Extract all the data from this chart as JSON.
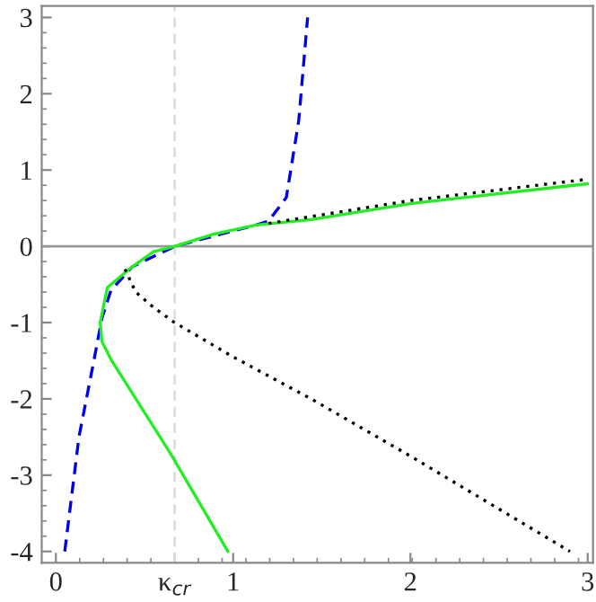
{
  "chart_data": {
    "type": "line",
    "xlim": [
      -0.08,
      3.03
    ],
    "ylim": [
      -4.15,
      3.15
    ],
    "xticks": [
      0,
      {
        "value": 0.67,
        "label": "κ$_{cr}$"
      },
      1,
      2,
      3
    ],
    "yticks": [
      -4,
      -3,
      -2,
      -1,
      0,
      1,
      2,
      3
    ],
    "grid": false,
    "legend": false,
    "marker": "none",
    "ref_lines": [
      {
        "axis": "y",
        "value": 0,
        "color": "#999999",
        "line_style": "solid"
      },
      {
        "axis": "x",
        "value": 0.67,
        "color": "#dddddd",
        "line_style": "dashed"
      }
    ],
    "series": [
      {
        "color": "#0000ee",
        "line_style": "dashed",
        "x": [
          0.05,
          0.13,
          0.21,
          0.26,
          0.31,
          0.43,
          0.55,
          0.67,
          0.89,
          1.13,
          1.2,
          1.3,
          1.37,
          1.42
        ],
        "values": [
          -4,
          -2.5,
          -1.55,
          -0.94,
          -0.58,
          -0.27,
          null,
          0,
          null,
          0.28,
          0.33,
          0.64,
          1.65,
          3
        ]
      },
      {
        "color": "#22ee22",
        "line_style": "solid",
        "x": [
          3.0,
          2.0,
          1.44,
          1.13,
          0.89,
          0.67,
          0.55,
          0.43,
          0.29,
          0.25,
          0.26,
          0.31,
          0.65,
          0.97
        ],
        "values": [
          0.82,
          0.56,
          0.35,
          0.28,
          0.16,
          0,
          -0.07,
          -0.27,
          -0.54,
          -1.0,
          -1.25,
          -1.48,
          -2.73,
          -4
        ]
      },
      {
        "color": "#000000",
        "line_style": "dotted",
        "x": [
          1.2,
          2.0,
          3.0
        ],
        "values": [
          0.3,
          0.6,
          0.88
        ]
      },
      {
        "color": "#000000",
        "line_style": "dotted",
        "x": [
          0.39,
          0.45,
          0.55,
          0.67,
          1.0,
          1.44,
          2.0,
          2.9
        ],
        "values": [
          -0.3,
          -0.6,
          -0.8,
          -1.0,
          -1.45,
          -2.0,
          -2.75,
          -4
        ]
      }
    ]
  }
}
